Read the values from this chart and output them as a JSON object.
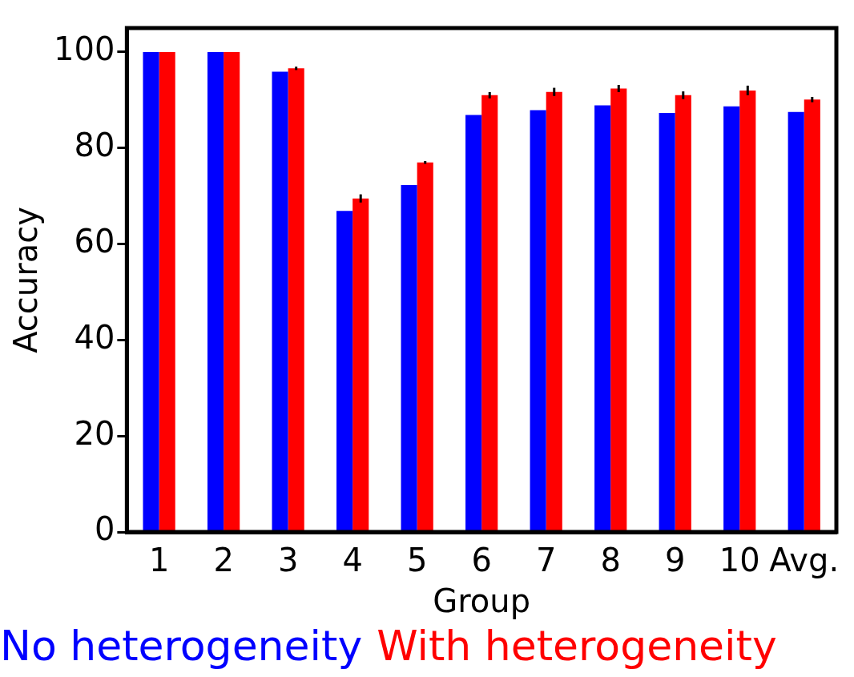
{
  "chart_data": {
    "type": "bar",
    "xlabel": "Group",
    "ylabel": "Accuracy",
    "categories": [
      "1",
      "2",
      "3",
      "4",
      "5",
      "6",
      "7",
      "8",
      "9",
      "10",
      "Avg."
    ],
    "series": [
      {
        "name": "No heterogeneity",
        "color": "#0000ff",
        "values": [
          100,
          100,
          95.9,
          66.9,
          72.3,
          86.9,
          87.9,
          88.9,
          87.3,
          88.7,
          87.5
        ]
      },
      {
        "name": "With heterogeneity",
        "color": "#ff0000",
        "values": [
          100,
          100,
          96.6,
          69.5,
          77.0,
          91.0,
          91.7,
          92.4,
          91.0,
          92.0,
          90.1
        ],
        "errors": [
          null,
          null,
          0.35,
          0.85,
          0.3,
          0.65,
          0.85,
          0.75,
          0.8,
          1.0,
          0.55
        ]
      }
    ],
    "ylim": [
      0,
      105
    ],
    "yticks": [
      0,
      20,
      40,
      60,
      80,
      100
    ],
    "grid": false,
    "legend": "bottom"
  }
}
